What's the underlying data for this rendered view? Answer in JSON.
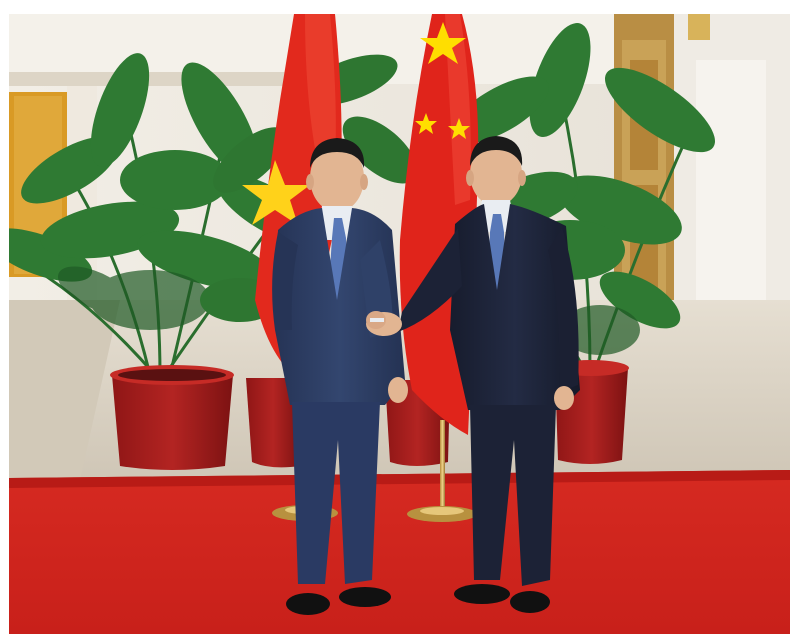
{
  "image": {
    "kind": "photograph",
    "scene": "handshake-in-formal-reception-hall",
    "palette": {
      "carpet": "#d8261f",
      "carpet_shadow": "#b81b16",
      "floor": "#d9d2c6",
      "wall_panel": "#ece8df",
      "wood_door": "#c49a4c",
      "pot": "#a51e1e",
      "pot_rim": "#c62b26",
      "palm": "#2f7a33",
      "palm_dark": "#1f5a25",
      "china_flag_red": "#e0241b",
      "china_flag_star": "#ffde00",
      "vietnam_flag_red": "#e2291d",
      "vietnam_flag_star": "#ffd21a",
      "suit_left": "#2a3a63",
      "suit_right": "#1c2236",
      "shirt": "#e9edf2",
      "tie": "#5878b8",
      "skin": "#e2b592",
      "hair": "#1a1a1a"
    }
  }
}
